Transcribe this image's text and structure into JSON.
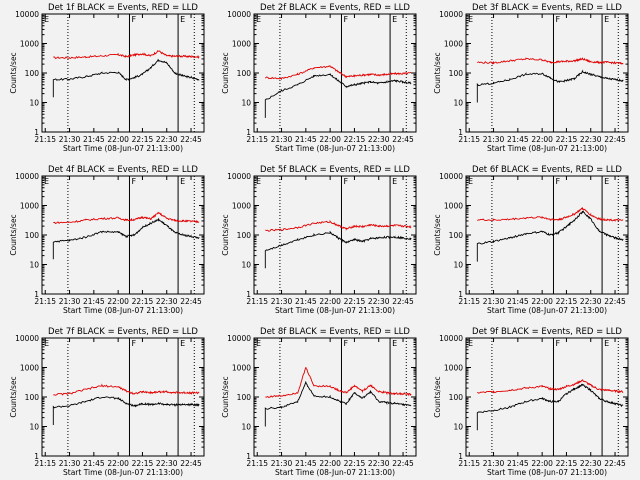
{
  "figure": {
    "xtitle": "Start Time (08-Jun-07 21:13:00)",
    "ytitle": "Counts/sec"
  },
  "colors": {
    "events": "#000000",
    "lld": "#e00000",
    "background": "#f2f2f2"
  },
  "chart_data": [
    {
      "type": "line",
      "title": "Det 1f BLACK = Events, RED = LLD",
      "xlabel": "Start Time (08-Jun-07 21:13:00)",
      "ylabel": "Counts/sec",
      "x_ticks": [
        "21:15",
        "21:30",
        "21:45",
        "22:00",
        "22:15",
        "22:30",
        "22:45"
      ],
      "y_ticks": [
        "1",
        "10",
        "100",
        "1000",
        "10000"
      ],
      "ylim": [
        1,
        10000
      ],
      "y_scale": "log",
      "marker_labels": [
        "E",
        "F",
        "E"
      ],
      "x": [
        "21:20",
        "21:30",
        "21:40",
        "21:50",
        "22:00",
        "22:05",
        "22:10",
        "22:15",
        "22:20",
        "22:25",
        "22:30",
        "22:35",
        "22:40",
        "22:45",
        "22:50"
      ],
      "series": [
        {
          "name": "LLD",
          "values": [
            330,
            330,
            350,
            380,
            420,
            360,
            410,
            450,
            380,
            560,
            380,
            370,
            370,
            360,
            350
          ]
        },
        {
          "name": "Events",
          "values": [
            60,
            62,
            75,
            100,
            105,
            60,
            70,
            90,
            150,
            280,
            220,
            100,
            80,
            70,
            60
          ]
        }
      ]
    },
    {
      "type": "line",
      "title": "Det 2f BLACK = Events, RED = LLD",
      "xlabel": "Start Time (08-Jun-07 21:13:00)",
      "ylabel": "Counts/sec",
      "x_ticks": [
        "21:15",
        "21:30",
        "21:45",
        "22:00",
        "22:15",
        "22:30",
        "22:45"
      ],
      "y_ticks": [
        "1",
        "10",
        "100",
        "1000",
        "10000"
      ],
      "ylim": [
        1,
        10000
      ],
      "y_scale": "log",
      "marker_labels": [
        "E",
        "F",
        "E"
      ],
      "x": [
        "21:20",
        "21:30",
        "21:40",
        "21:50",
        "22:00",
        "22:05",
        "22:10",
        "22:15",
        "22:20",
        "22:25",
        "22:30",
        "22:35",
        "22:40",
        "22:45",
        "22:50"
      ],
      "series": [
        {
          "name": "LLD",
          "values": [
            70,
            65,
            90,
            150,
            170,
            110,
            75,
            80,
            85,
            90,
            85,
            90,
            95,
            95,
            100
          ]
        },
        {
          "name": "Events",
          "values": [
            12,
            25,
            40,
            80,
            90,
            55,
            35,
            40,
            45,
            50,
            45,
            50,
            55,
            50,
            45
          ]
        }
      ]
    },
    {
      "type": "line",
      "title": "Det 3f BLACK = Events, RED = LLD",
      "xlabel": "Start Time (08-Jun-07 21:13:00)",
      "ylabel": "Counts/sec",
      "x_ticks": [
        "21:15",
        "21:30",
        "21:45",
        "22:00",
        "22:15",
        "22:30",
        "22:45"
      ],
      "y_ticks": [
        "1",
        "10",
        "100",
        "1000",
        "10000"
      ],
      "ylim": [
        1,
        10000
      ],
      "y_scale": "log",
      "marker_labels": [
        "E",
        "F",
        "E"
      ],
      "x": [
        "21:20",
        "21:30",
        "21:40",
        "21:50",
        "22:00",
        "22:05",
        "22:10",
        "22:15",
        "22:20",
        "22:25",
        "22:30",
        "22:35",
        "22:40",
        "22:45",
        "22:50"
      ],
      "series": [
        {
          "name": "LLD",
          "values": [
            230,
            220,
            260,
            300,
            280,
            230,
            240,
            250,
            260,
            300,
            240,
            230,
            230,
            220,
            210
          ]
        },
        {
          "name": "Events",
          "values": [
            40,
            45,
            60,
            90,
            95,
            70,
            50,
            55,
            65,
            110,
            90,
            75,
            65,
            60,
            55
          ]
        }
      ]
    },
    {
      "type": "line",
      "title": "Det 4f BLACK = Events, RED = LLD",
      "xlabel": "Start Time (08-Jun-07 21:13:00)",
      "ylabel": "Counts/sec",
      "x_ticks": [
        "21:15",
        "21:30",
        "21:45",
        "22:00",
        "22:15",
        "22:30",
        "22:45"
      ],
      "y_ticks": [
        "1",
        "10",
        "100",
        "1000",
        "10000"
      ],
      "ylim": [
        1,
        10000
      ],
      "y_scale": "log",
      "marker_labels": [
        "E",
        "F",
        "E"
      ],
      "x": [
        "21:20",
        "21:30",
        "21:40",
        "21:50",
        "22:00",
        "22:05",
        "22:10",
        "22:15",
        "22:20",
        "22:25",
        "22:30",
        "22:35",
        "22:40",
        "22:45",
        "22:50"
      ],
      "series": [
        {
          "name": "LLD",
          "values": [
            260,
            270,
            320,
            360,
            380,
            320,
            330,
            400,
            350,
            560,
            370,
            310,
            300,
            290,
            280
          ]
        },
        {
          "name": "Events",
          "values": [
            60,
            65,
            85,
            130,
            125,
            90,
            100,
            180,
            250,
            330,
            210,
            120,
            100,
            90,
            80
          ]
        }
      ]
    },
    {
      "type": "line",
      "title": "Det 5f BLACK = Events, RED = LLD",
      "xlabel": "Start Time (08-Jun-07 21:13:00)",
      "ylabel": "Counts/sec",
      "x_ticks": [
        "21:15",
        "21:30",
        "21:45",
        "22:00",
        "22:15",
        "22:30",
        "22:45"
      ],
      "y_ticks": [
        "1",
        "10",
        "100",
        "1000",
        "10000"
      ],
      "ylim": [
        1,
        10000
      ],
      "y_scale": "log",
      "marker_labels": [
        "E",
        "F",
        "E"
      ],
      "x": [
        "21:20",
        "21:30",
        "21:40",
        "21:50",
        "22:00",
        "22:05",
        "22:10",
        "22:15",
        "22:20",
        "22:25",
        "22:30",
        "22:35",
        "22:40",
        "22:45",
        "22:50"
      ],
      "series": [
        {
          "name": "LLD",
          "values": [
            140,
            150,
            180,
            250,
            280,
            210,
            160,
            200,
            190,
            220,
            200,
            200,
            210,
            200,
            190
          ]
        },
        {
          "name": "Events",
          "values": [
            30,
            45,
            70,
            100,
            120,
            80,
            55,
            70,
            60,
            75,
            80,
            85,
            85,
            80,
            75
          ]
        }
      ]
    },
    {
      "type": "line",
      "title": "Det 6f BLACK = Events, RED = LLD",
      "xlabel": "Start Time (08-Jun-07 21:13:00)",
      "ylabel": "Counts/sec",
      "x_ticks": [
        "21:15",
        "21:30",
        "21:45",
        "22:00",
        "22:15",
        "22:30",
        "22:45"
      ],
      "y_ticks": [
        "1",
        "10",
        "100",
        "1000",
        "10000"
      ],
      "ylim": [
        1,
        10000
      ],
      "y_scale": "log",
      "marker_labels": [
        "E",
        "F",
        "E"
      ],
      "x": [
        "21:20",
        "21:30",
        "21:40",
        "21:50",
        "22:00",
        "22:05",
        "22:10",
        "22:15",
        "22:20",
        "22:25",
        "22:30",
        "22:35",
        "22:40",
        "22:45",
        "22:50"
      ],
      "series": [
        {
          "name": "LLD",
          "values": [
            330,
            320,
            340,
            380,
            400,
            340,
            330,
            400,
            520,
            800,
            480,
            350,
            330,
            320,
            310
          ]
        },
        {
          "name": "Events",
          "values": [
            50,
            60,
            80,
            110,
            130,
            100,
            120,
            190,
            330,
            620,
            350,
            140,
            100,
            80,
            70
          ]
        }
      ]
    },
    {
      "type": "line",
      "title": "Det 7f BLACK = Events, RED = LLD",
      "xlabel": "Start Time (08-Jun-07 21:13:00)",
      "ylabel": "Counts/sec",
      "x_ticks": [
        "21:15",
        "21:30",
        "21:45",
        "22:00",
        "22:15",
        "22:30",
        "22:45"
      ],
      "y_ticks": [
        "1",
        "10",
        "100",
        "1000",
        "10000"
      ],
      "ylim": [
        1,
        10000
      ],
      "y_scale": "log",
      "marker_labels": [
        "E",
        "F",
        "E"
      ],
      "x": [
        "21:20",
        "21:30",
        "21:40",
        "21:50",
        "22:00",
        "22:05",
        "22:10",
        "22:15",
        "22:20",
        "22:25",
        "22:30",
        "22:35",
        "22:40",
        "22:45",
        "22:50"
      ],
      "series": [
        {
          "name": "LLD",
          "values": [
            120,
            130,
            180,
            240,
            220,
            160,
            130,
            150,
            140,
            150,
            150,
            140,
            140,
            140,
            140
          ]
        },
        {
          "name": "Events",
          "values": [
            45,
            50,
            70,
            100,
            90,
            60,
            50,
            60,
            55,
            60,
            55,
            55,
            55,
            55,
            55
          ]
        }
      ]
    },
    {
      "type": "line",
      "title": "Det 8f BLACK = Events, RED = LLD",
      "xlabel": "Start Time (08-Jun-07 21:13:00)",
      "ylabel": "Counts/sec",
      "x_ticks": [
        "21:15",
        "21:30",
        "21:45",
        "22:00",
        "22:15",
        "22:30",
        "22:45"
      ],
      "y_ticks": [
        "1",
        "10",
        "100",
        "1000",
        "10000"
      ],
      "ylim": [
        1,
        10000
      ],
      "y_scale": "log",
      "marker_labels": [
        "E",
        "F",
        "E"
      ],
      "x": [
        "21:20",
        "21:30",
        "21:40",
        "21:45",
        "21:50",
        "22:00",
        "22:05",
        "22:10",
        "22:15",
        "22:20",
        "22:25",
        "22:30",
        "22:35",
        "22:40",
        "22:45",
        "22:50"
      ],
      "series": [
        {
          "name": "LLD",
          "values": [
            100,
            110,
            140,
            1000,
            240,
            230,
            170,
            140,
            240,
            160,
            250,
            150,
            140,
            130,
            130,
            120
          ]
        },
        {
          "name": "Events",
          "values": [
            40,
            45,
            70,
            300,
            110,
            100,
            75,
            60,
            140,
            90,
            150,
            70,
            65,
            60,
            55,
            50
          ]
        }
      ]
    },
    {
      "type": "line",
      "title": "Det 9f BLACK = Events, RED = LLD",
      "xlabel": "Start Time (08-Jun-07 21:13:00)",
      "ylabel": "Counts/sec",
      "x_ticks": [
        "21:15",
        "21:30",
        "21:45",
        "22:00",
        "22:15",
        "22:30",
        "22:45"
      ],
      "y_ticks": [
        "1",
        "10",
        "100",
        "1000",
        "10000"
      ],
      "ylim": [
        1,
        10000
      ],
      "y_scale": "log",
      "marker_labels": [
        "E",
        "F",
        "E"
      ],
      "x": [
        "21:20",
        "21:30",
        "21:40",
        "21:50",
        "22:00",
        "22:05",
        "22:10",
        "22:15",
        "22:20",
        "22:25",
        "22:30",
        "22:35",
        "22:40",
        "22:45",
        "22:50"
      ],
      "series": [
        {
          "name": "LLD",
          "values": [
            140,
            150,
            170,
            200,
            230,
            190,
            180,
            230,
            270,
            370,
            250,
            180,
            170,
            160,
            150
          ]
        },
        {
          "name": "Events",
          "values": [
            30,
            35,
            45,
            70,
            90,
            70,
            70,
            130,
            190,
            260,
            170,
            90,
            70,
            60,
            50
          ]
        }
      ]
    }
  ]
}
